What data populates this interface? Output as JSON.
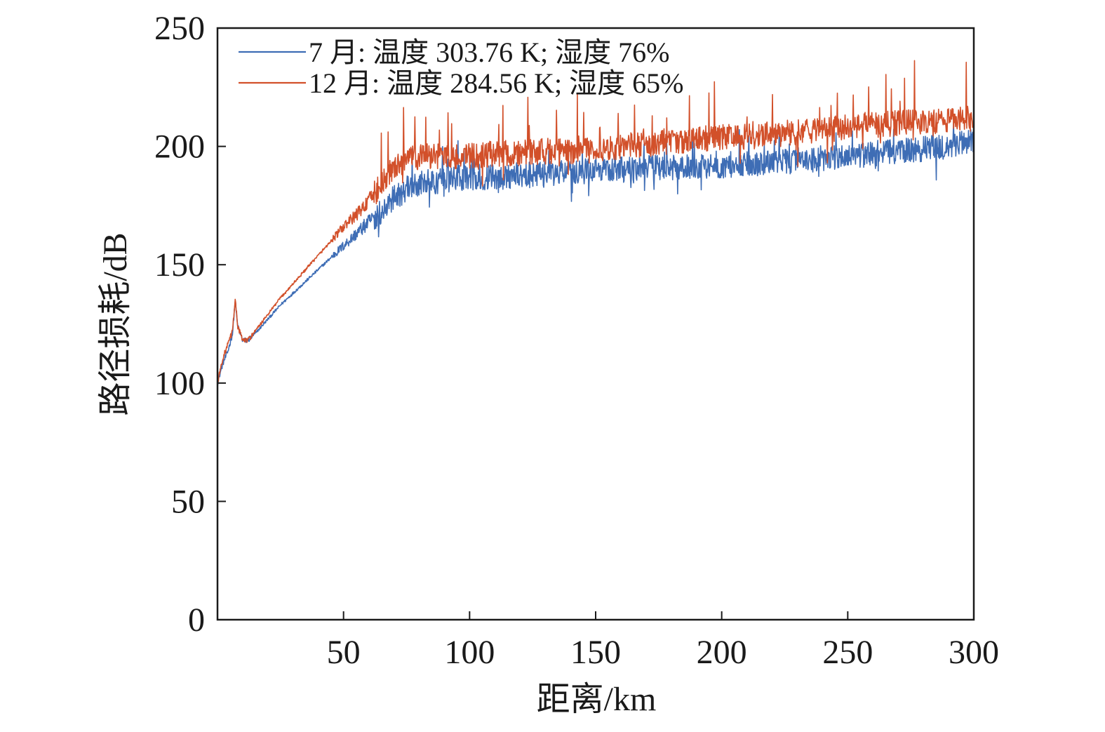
{
  "chart_data": {
    "type": "line",
    "title": "",
    "xlabel": "距离/km",
    "ylabel": "路径损耗/dB",
    "xlim": [
      0,
      300
    ],
    "ylim": [
      0,
      250
    ],
    "x_ticks": [
      50,
      100,
      150,
      200,
      250,
      300
    ],
    "y_ticks": [
      0,
      50,
      100,
      150,
      200,
      250
    ],
    "grid": false,
    "legend_position": "top-left",
    "noise_note": "curves beyond ~60 km fluctuate strongly; values listed are approximate envelope centres",
    "series": [
      {
        "name": "7 月: 温度 303.76 K; 湿度 76%",
        "color": "#3e6db5",
        "x": [
          0,
          2,
          4,
          6,
          7,
          8,
          10,
          12,
          15,
          20,
          25,
          30,
          35,
          40,
          45,
          50,
          55,
          60,
          65,
          70,
          75,
          80,
          90,
          100,
          110,
          120,
          130,
          140,
          150,
          160,
          170,
          180,
          190,
          200,
          210,
          220,
          230,
          240,
          250,
          260,
          270,
          280,
          290,
          300
        ],
        "y": [
          100,
          108,
          113,
          121,
          135,
          124,
          118,
          118,
          121,
          127,
          133,
          138,
          143,
          148,
          153,
          158,
          163,
          168,
          173,
          178,
          182,
          184,
          186,
          187,
          187,
          188,
          188,
          189,
          190,
          190,
          191,
          191,
          192,
          192,
          193,
          193,
          194,
          195,
          196,
          197,
          198,
          199,
          200,
          202
        ]
      },
      {
        "name": "12 月: 温度 284.56 K; 湿度 65%",
        "color": "#d2502a",
        "x": [
          0,
          2,
          4,
          6,
          7,
          8,
          10,
          12,
          15,
          20,
          25,
          30,
          35,
          40,
          45,
          50,
          55,
          60,
          65,
          70,
          75,
          80,
          90,
          100,
          110,
          120,
          130,
          140,
          150,
          160,
          170,
          180,
          190,
          200,
          210,
          220,
          230,
          240,
          250,
          260,
          270,
          280,
          290,
          300
        ],
        "y": [
          100,
          110,
          116,
          122,
          136,
          124,
          118,
          118,
          122,
          129,
          136,
          142,
          148,
          154,
          160,
          166,
          171,
          177,
          184,
          191,
          194,
          196,
          196,
          196,
          197,
          197,
          198,
          198,
          199,
          200,
          201,
          202,
          203,
          204,
          204,
          205,
          206,
          207,
          208,
          209,
          210,
          210,
          211,
          212
        ]
      }
    ]
  }
}
